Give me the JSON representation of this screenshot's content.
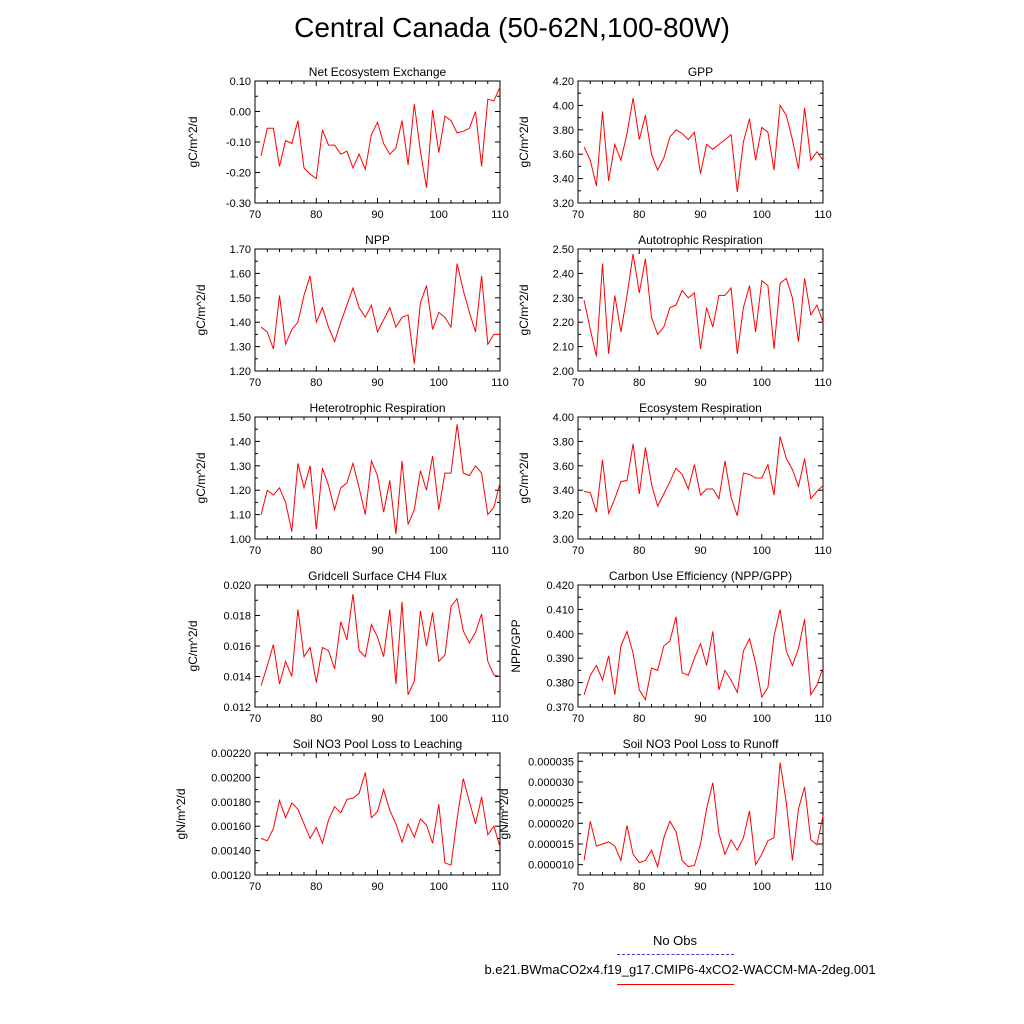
{
  "figure_title": "Central Canada (50-62N,100-80W)",
  "legend": {
    "obs_label": "No Obs",
    "obs_color": "#3b3bd6",
    "run_label": "b.e21.BWmaCO2x4.f19_g17.CMIP6-4xCO2-WACCM-MA-2deg.001",
    "run_color": "#ff0000"
  },
  "chart_data": [
    {
      "type": "line",
      "title": "Net Ecosystem Exchange",
      "ylabel": "gC/m^2/d",
      "xlabel": "",
      "xlim": [
        70,
        110
      ],
      "ylim": [
        -0.3,
        0.1
      ],
      "xticks": [
        "70",
        "80",
        "90",
        "100",
        "110"
      ],
      "yticks": [
        "-0.30",
        "-0.20",
        "-0.10",
        "0.00",
        "0.10"
      ],
      "x": [
        71,
        72,
        73,
        74,
        75,
        76,
        77,
        78,
        79,
        80,
        81,
        82,
        83,
        84,
        85,
        86,
        87,
        88,
        89,
        90,
        91,
        92,
        93,
        94,
        95,
        96,
        97,
        98,
        99,
        100,
        101,
        102,
        103,
        104,
        105,
        106,
        107,
        108,
        109,
        110
      ],
      "values": [
        -0.145,
        -0.055,
        -0.055,
        -0.18,
        -0.095,
        -0.105,
        -0.03,
        -0.185,
        -0.205,
        -0.22,
        -0.06,
        -0.11,
        -0.11,
        -0.14,
        -0.13,
        -0.185,
        -0.14,
        -0.19,
        -0.075,
        -0.035,
        -0.105,
        -0.14,
        -0.12,
        -0.03,
        -0.175,
        0.025,
        -0.13,
        -0.25,
        0.005,
        -0.135,
        -0.015,
        -0.03,
        -0.07,
        -0.065,
        -0.055,
        0.0,
        -0.18,
        0.04,
        0.035,
        0.08
      ]
    },
    {
      "type": "line",
      "title": "GPP",
      "ylabel": "gC/m^2/d",
      "xlabel": "",
      "xlim": [
        70,
        110
      ],
      "ylim": [
        3.2,
        4.2
      ],
      "xticks": [
        "70",
        "80",
        "90",
        "100",
        "110"
      ],
      "yticks": [
        "3.20",
        "3.40",
        "3.60",
        "3.80",
        "4.00",
        "4.20"
      ],
      "x": [
        71,
        72,
        73,
        74,
        75,
        76,
        77,
        78,
        79,
        80,
        81,
        82,
        83,
        84,
        85,
        86,
        87,
        88,
        89,
        90,
        91,
        92,
        93,
        94,
        95,
        96,
        97,
        98,
        99,
        100,
        101,
        102,
        103,
        104,
        105,
        106,
        107,
        108,
        109,
        110
      ],
      "values": [
        3.66,
        3.55,
        3.34,
        3.95,
        3.38,
        3.68,
        3.55,
        3.77,
        4.06,
        3.72,
        3.92,
        3.6,
        3.47,
        3.57,
        3.74,
        3.8,
        3.77,
        3.72,
        3.78,
        3.44,
        3.68,
        3.64,
        3.68,
        3.72,
        3.76,
        3.29,
        3.7,
        3.89,
        3.55,
        3.82,
        3.78,
        3.47,
        4.0,
        3.92,
        3.72,
        3.48,
        3.98,
        3.55,
        3.62,
        3.55
      ]
    },
    {
      "type": "line",
      "title": "NPP",
      "ylabel": "gC/m^2/d",
      "xlabel": "",
      "xlim": [
        70,
        110
      ],
      "ylim": [
        1.2,
        1.7
      ],
      "xticks": [
        "70",
        "80",
        "90",
        "100",
        "110"
      ],
      "yticks": [
        "1.20",
        "1.30",
        "1.40",
        "1.50",
        "1.60",
        "1.70"
      ],
      "x": [
        71,
        72,
        73,
        74,
        75,
        76,
        77,
        78,
        79,
        80,
        81,
        82,
        83,
        84,
        85,
        86,
        87,
        88,
        89,
        90,
        91,
        92,
        93,
        94,
        95,
        96,
        97,
        98,
        99,
        100,
        101,
        102,
        103,
        104,
        105,
        106,
        107,
        108,
        109,
        110
      ],
      "values": [
        1.38,
        1.36,
        1.29,
        1.51,
        1.31,
        1.37,
        1.4,
        1.51,
        1.59,
        1.4,
        1.46,
        1.38,
        1.32,
        1.4,
        1.47,
        1.54,
        1.46,
        1.42,
        1.47,
        1.36,
        1.41,
        1.46,
        1.38,
        1.42,
        1.43,
        1.23,
        1.48,
        1.55,
        1.37,
        1.44,
        1.42,
        1.38,
        1.64,
        1.53,
        1.44,
        1.36,
        1.59,
        1.31,
        1.35,
        1.35
      ]
    },
    {
      "type": "line",
      "title": "Autotrophic Respiration",
      "ylabel": "gC/m^2/d",
      "xlabel": "",
      "xlim": [
        70,
        110
      ],
      "ylim": [
        2.0,
        2.5
      ],
      "xticks": [
        "70",
        "80",
        "90",
        "100",
        "110"
      ],
      "yticks": [
        "2.00",
        "2.10",
        "2.20",
        "2.30",
        "2.40",
        "2.50"
      ],
      "x": [
        71,
        72,
        73,
        74,
        75,
        76,
        77,
        78,
        79,
        80,
        81,
        82,
        83,
        84,
        85,
        86,
        87,
        88,
        89,
        90,
        91,
        92,
        93,
        94,
        95,
        96,
        97,
        98,
        99,
        100,
        101,
        102,
        103,
        104,
        105,
        106,
        107,
        108,
        109,
        110
      ],
      "values": [
        2.29,
        2.17,
        2.06,
        2.44,
        2.07,
        2.31,
        2.16,
        2.31,
        2.48,
        2.32,
        2.46,
        2.22,
        2.15,
        2.18,
        2.26,
        2.27,
        2.33,
        2.3,
        2.32,
        2.09,
        2.26,
        2.18,
        2.31,
        2.31,
        2.34,
        2.07,
        2.26,
        2.35,
        2.16,
        2.37,
        2.35,
        2.09,
        2.36,
        2.38,
        2.3,
        2.12,
        2.38,
        2.23,
        2.27,
        2.2
      ]
    },
    {
      "type": "line",
      "title": "Heterotrophic Respiration",
      "ylabel": "gC/m^2/d",
      "xlabel": "",
      "xlim": [
        70,
        110
      ],
      "ylim": [
        1.0,
        1.5
      ],
      "xticks": [
        "70",
        "80",
        "90",
        "100",
        "110"
      ],
      "yticks": [
        "1.00",
        "1.10",
        "1.20",
        "1.30",
        "1.40",
        "1.50"
      ],
      "x": [
        71,
        72,
        73,
        74,
        75,
        76,
        77,
        78,
        79,
        80,
        81,
        82,
        83,
        84,
        85,
        86,
        87,
        88,
        89,
        90,
        91,
        92,
        93,
        94,
        95,
        96,
        97,
        98,
        99,
        100,
        101,
        102,
        103,
        104,
        105,
        106,
        107,
        108,
        109,
        110
      ],
      "values": [
        1.1,
        1.2,
        1.18,
        1.21,
        1.15,
        1.03,
        1.31,
        1.21,
        1.3,
        1.04,
        1.29,
        1.22,
        1.12,
        1.21,
        1.23,
        1.31,
        1.21,
        1.1,
        1.32,
        1.26,
        1.11,
        1.24,
        1.02,
        1.32,
        1.06,
        1.12,
        1.28,
        1.2,
        1.34,
        1.12,
        1.27,
        1.27,
        1.47,
        1.27,
        1.26,
        1.3,
        1.27,
        1.1,
        1.13,
        1.23
      ]
    },
    {
      "type": "line",
      "title": "Ecosystem Respiration",
      "ylabel": "gC/m^2/d",
      "xlabel": "",
      "xlim": [
        70,
        110
      ],
      "ylim": [
        3.0,
        4.0
      ],
      "xticks": [
        "70",
        "80",
        "90",
        "100",
        "110"
      ],
      "yticks": [
        "3.00",
        "3.20",
        "3.40",
        "3.60",
        "3.80",
        "4.00"
      ],
      "x": [
        71,
        72,
        73,
        74,
        75,
        76,
        77,
        78,
        79,
        80,
        81,
        82,
        83,
        84,
        85,
        86,
        87,
        88,
        89,
        90,
        91,
        92,
        93,
        94,
        95,
        96,
        97,
        98,
        99,
        100,
        101,
        102,
        103,
        104,
        105,
        106,
        107,
        108,
        109,
        110
      ],
      "values": [
        3.39,
        3.38,
        3.22,
        3.65,
        3.21,
        3.33,
        3.47,
        3.48,
        3.78,
        3.37,
        3.75,
        3.45,
        3.27,
        3.37,
        3.47,
        3.58,
        3.53,
        3.41,
        3.61,
        3.36,
        3.41,
        3.41,
        3.33,
        3.64,
        3.34,
        3.19,
        3.54,
        3.53,
        3.5,
        3.5,
        3.61,
        3.36,
        3.84,
        3.66,
        3.57,
        3.43,
        3.66,
        3.33,
        3.39,
        3.44
      ]
    },
    {
      "type": "line",
      "title": "Gridcell Surface CH4 Flux",
      "ylabel": "gC/m^2/d",
      "xlabel": "",
      "xlim": [
        70,
        110
      ],
      "ylim": [
        0.012,
        0.02
      ],
      "xticks": [
        "70",
        "80",
        "90",
        "100",
        "110"
      ],
      "yticks": [
        "0.012",
        "0.014",
        "0.016",
        "0.018",
        "0.020"
      ],
      "x": [
        71,
        72,
        73,
        74,
        75,
        76,
        77,
        78,
        79,
        80,
        81,
        82,
        83,
        84,
        85,
        86,
        87,
        88,
        89,
        90,
        91,
        92,
        93,
        94,
        95,
        96,
        97,
        98,
        99,
        100,
        101,
        102,
        103,
        104,
        105,
        106,
        107,
        108,
        109,
        110
      ],
      "values": [
        0.0134,
        0.0147,
        0.0161,
        0.0135,
        0.015,
        0.014,
        0.0184,
        0.0153,
        0.0159,
        0.0136,
        0.0159,
        0.0157,
        0.0145,
        0.0176,
        0.0164,
        0.0194,
        0.0157,
        0.0153,
        0.0174,
        0.0166,
        0.0153,
        0.0184,
        0.0135,
        0.0189,
        0.0128,
        0.0137,
        0.0183,
        0.016,
        0.0182,
        0.015,
        0.0154,
        0.0186,
        0.0191,
        0.017,
        0.0162,
        0.0169,
        0.0181,
        0.015,
        0.0141,
        0.014
      ]
    },
    {
      "type": "line",
      "title": "Carbon Use Efficiency (NPP/GPP)",
      "ylabel": "NPP/GPP",
      "xlabel": "",
      "xlim": [
        70,
        110
      ],
      "ylim": [
        0.37,
        0.42
      ],
      "xticks": [
        "70",
        "80",
        "90",
        "100",
        "110"
      ],
      "yticks": [
        "0.370",
        "0.380",
        "0.390",
        "0.400",
        "0.410",
        "0.420"
      ],
      "x": [
        71,
        72,
        73,
        74,
        75,
        76,
        77,
        78,
        79,
        80,
        81,
        82,
        83,
        84,
        85,
        86,
        87,
        88,
        89,
        90,
        91,
        92,
        93,
        94,
        95,
        96,
        97,
        98,
        99,
        100,
        101,
        102,
        103,
        104,
        105,
        106,
        107,
        108,
        109,
        110
      ],
      "values": [
        0.375,
        0.383,
        0.387,
        0.381,
        0.391,
        0.375,
        0.395,
        0.401,
        0.392,
        0.377,
        0.373,
        0.386,
        0.385,
        0.395,
        0.397,
        0.407,
        0.384,
        0.383,
        0.39,
        0.396,
        0.387,
        0.401,
        0.377,
        0.385,
        0.381,
        0.376,
        0.393,
        0.398,
        0.388,
        0.374,
        0.378,
        0.399,
        0.41,
        0.393,
        0.387,
        0.394,
        0.406,
        0.375,
        0.379,
        0.386
      ]
    },
    {
      "type": "line",
      "title": "Soil NO3 Pool Loss to Leaching",
      "ylabel": "gN/m^2/d",
      "xlabel": "",
      "xlim": [
        70,
        110
      ],
      "ylim": [
        0.0012,
        0.0022
      ],
      "xticks": [
        "70",
        "80",
        "90",
        "100",
        "110"
      ],
      "yticks": [
        "0.00120",
        "0.00140",
        "0.00160",
        "0.00180",
        "0.00200",
        "0.00220"
      ],
      "x": [
        71,
        72,
        73,
        74,
        75,
        76,
        77,
        78,
        79,
        80,
        81,
        82,
        83,
        84,
        85,
        86,
        87,
        88,
        89,
        90,
        91,
        92,
        93,
        94,
        95,
        96,
        97,
        98,
        99,
        100,
        101,
        102,
        103,
        104,
        105,
        106,
        107,
        108,
        109,
        110
      ],
      "values": [
        0.0015,
        0.00148,
        0.00158,
        0.00181,
        0.00167,
        0.00179,
        0.00174,
        0.00162,
        0.0015,
        0.00159,
        0.00146,
        0.00165,
        0.00176,
        0.00171,
        0.00182,
        0.00183,
        0.00187,
        0.00204,
        0.00167,
        0.00172,
        0.0019,
        0.00173,
        0.00162,
        0.00147,
        0.00162,
        0.00151,
        0.00166,
        0.00161,
        0.00146,
        0.00178,
        0.0013,
        0.00128,
        0.00166,
        0.00199,
        0.0018,
        0.00162,
        0.00184,
        0.00153,
        0.0016,
        0.00143
      ]
    },
    {
      "type": "line",
      "title": "Soil NO3 Pool Loss to Runoff",
      "ylabel": "gN/m^2/d",
      "xlabel": "",
      "xlim": [
        70,
        110
      ],
      "ylim": [
        7.5e-06,
        3.7e-05
      ],
      "xticks": [
        "70",
        "80",
        "90",
        "100",
        "110"
      ],
      "yticks": [
        "0.000010",
        "0.000015",
        "0.000020",
        "0.000025",
        "0.000030",
        "0.000035"
      ],
      "x": [
        71,
        72,
        73,
        74,
        75,
        76,
        77,
        78,
        79,
        80,
        81,
        82,
        83,
        84,
        85,
        86,
        87,
        88,
        89,
        90,
        91,
        92,
        93,
        94,
        95,
        96,
        97,
        98,
        99,
        100,
        101,
        102,
        103,
        104,
        105,
        106,
        107,
        108,
        109,
        110
      ],
      "values": [
        1.1e-05,
        2.05e-05,
        1.45e-05,
        1.5e-05,
        1.55e-05,
        1.45e-05,
        1.1e-05,
        1.95e-05,
        1.25e-05,
        1.05e-05,
        1.1e-05,
        1.35e-05,
        9.5e-06,
        1.65e-05,
        2.05e-05,
        1.8e-05,
        1.1e-05,
        9.5e-06,
        9.8e-06,
        1.5e-05,
        2.35e-05,
        2.98e-05,
        1.75e-05,
        1.25e-05,
        1.6e-05,
        1.35e-05,
        1.65e-05,
        2.3e-05,
        1e-05,
        1.25e-05,
        1.58e-05,
        1.65e-05,
        3.47e-05,
        2.5e-05,
        1.1e-05,
        2.35e-05,
        2.88e-05,
        1.6e-05,
        1.48e-05,
        2.18e-05
      ]
    }
  ]
}
